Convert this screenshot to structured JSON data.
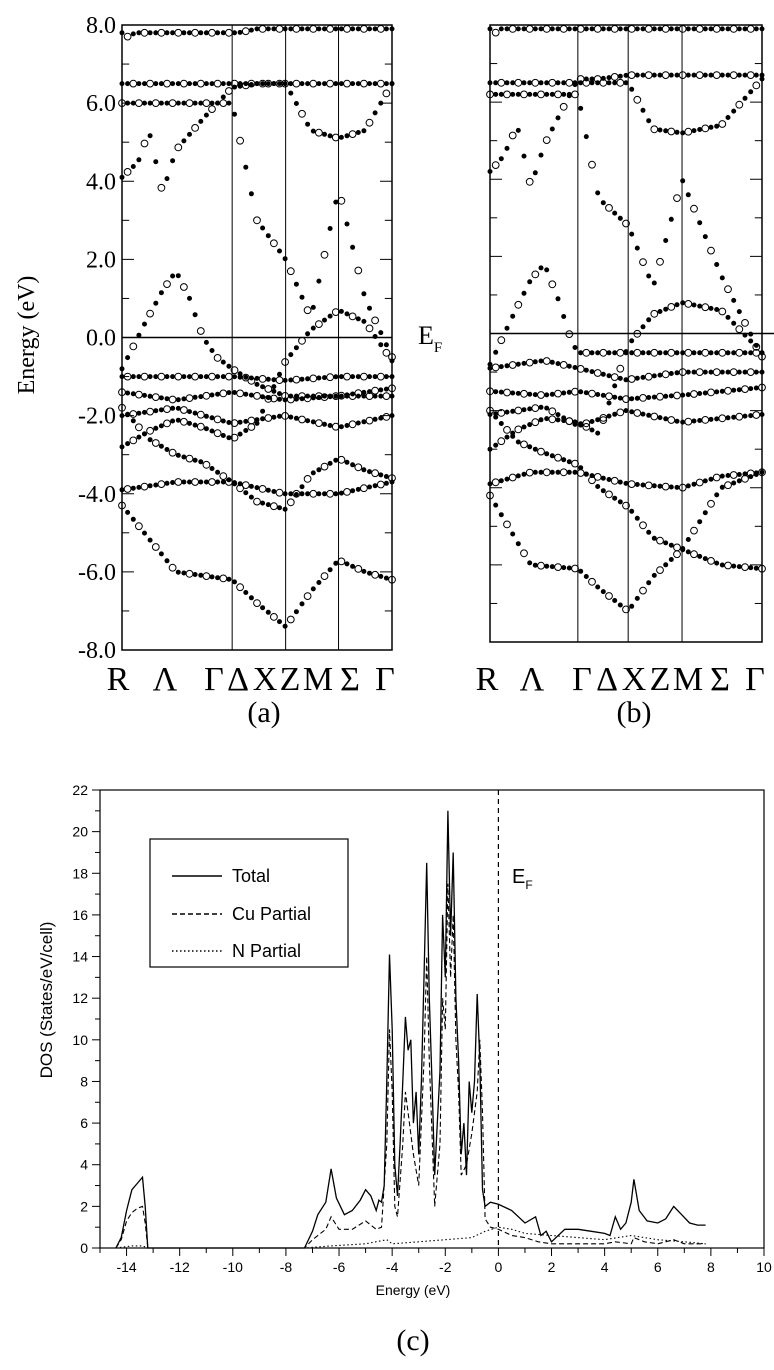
{
  "chart_data": [
    {
      "type": "scatter",
      "panel_label": "(a)",
      "ylabel": "Energy (eV)",
      "ylim": [
        -8,
        8
      ],
      "yticks": [
        "8.0",
        "6.0",
        "4.0",
        "2.0",
        "0.0",
        "-2.0",
        "-4.0",
        "-6.0",
        "-8.0"
      ],
      "k_labels": [
        "R",
        "Λ",
        "Γ",
        "Δ",
        "X",
        "Z",
        "M",
        "Σ",
        "Γ"
      ],
      "k_points": [
        "R",
        "Γ",
        "X",
        "M",
        "Γ"
      ],
      "k_positions": [
        0,
        0.408,
        0.606,
        0.802,
        1.0
      ],
      "series": [
        {
          "x": [
            0,
            0.2,
            0.408,
            0.5,
            0.606,
            0.7,
            0.802,
            0.9,
            1.0
          ],
          "y": [
            -4.3,
            -6.0,
            -6.2,
            -6.8,
            -7.4,
            -6.5,
            -5.7,
            -6.0,
            -6.2
          ]
        },
        {
          "x": [
            0,
            0.08,
            0.15,
            0.2,
            0.25,
            0.3,
            0.35,
            0.408,
            0.5,
            0.606
          ],
          "y": [
            -0.8,
            0.3,
            1.2,
            1.7,
            1.0,
            0.0,
            -0.5,
            -0.8,
            -1.2,
            -1.5
          ]
        },
        {
          "x": [
            0,
            0.2,
            0.408,
            0.6,
            0.802,
            1.0
          ],
          "y": [
            -3.9,
            -3.7,
            -3.7,
            -4.0,
            -4.0,
            -3.7
          ]
        },
        {
          "x": [
            0,
            0.1,
            0.2,
            0.3,
            0.408,
            0.5,
            0.606,
            0.7,
            0.802,
            0.9,
            1.0
          ],
          "y": [
            -1.8,
            -2.6,
            -3.0,
            -3.2,
            -3.7,
            -4.2,
            -4.4,
            -3.5,
            -3.1,
            -3.4,
            -3.6
          ]
        },
        {
          "x": [
            0,
            0.1,
            0.2,
            0.3,
            0.408,
            0.5,
            0.606,
            0.7,
            0.802,
            0.9,
            1.0
          ],
          "y": [
            -2.8,
            -2.4,
            -2.1,
            -2.3,
            -2.6,
            -2.2,
            -0.6,
            0.2,
            0.7,
            0.4,
            -0.6
          ]
        },
        {
          "x": [
            0,
            0.2,
            0.408,
            0.6,
            0.802,
            1.0
          ],
          "y": [
            -1.0,
            -1.0,
            -1.0,
            -1.1,
            -1.0,
            -1.0
          ]
        },
        {
          "x": [
            0,
            0.2,
            0.408,
            0.6,
            0.802,
            1.0
          ],
          "y": [
            -1.4,
            -1.6,
            -1.4,
            -1.6,
            -1.5,
            -1.3
          ]
        },
        {
          "x": [
            0,
            0.2,
            0.408,
            0.6,
            0.802,
            1.0
          ],
          "y": [
            -2.0,
            -1.8,
            -2.2,
            -2.0,
            -2.3,
            -2.0
          ]
        },
        {
          "x": [
            0,
            0.06,
            0.1,
            0.15,
            0.2,
            0.3,
            0.408,
            0.5,
            0.606
          ],
          "y": [
            4.1,
            4.5,
            5.3,
            3.7,
            4.8,
            5.6,
            6.4,
            6.5,
            6.5
          ]
        },
        {
          "x": [
            0.408,
            0.5,
            0.606,
            0.7,
            0.802,
            0.9,
            1.0
          ],
          "y": [
            6.0,
            3.0,
            2.0,
            0.5,
            3.8,
            1.0,
            -0.5
          ]
        },
        {
          "x": [
            0.606,
            0.7,
            0.802,
            0.9,
            1.0
          ],
          "y": [
            6.5,
            5.3,
            5.1,
            5.3,
            6.5
          ]
        },
        {
          "x": [
            0,
            0.02,
            0.05,
            0.408,
            0.43,
            0.5
          ],
          "y": [
            7.8,
            7.7,
            7.8,
            7.8,
            7.8,
            7.9
          ]
        }
      ]
    },
    {
      "type": "scatter",
      "panel_label": "(b)",
      "ylim": [
        -8,
        8
      ],
      "fermi_label": "E",
      "fermi_subscript": "F",
      "k_labels": [
        "R",
        "Λ",
        "Γ",
        "Δ",
        "X",
        "Z",
        "M",
        "Σ",
        "Γ"
      ],
      "k_points": [
        "R",
        "Γ",
        "X",
        "M",
        "Γ"
      ],
      "k_positions": [
        0,
        0.323,
        0.508,
        0.706,
        1.0
      ],
      "series": [
        {
          "x": [
            0,
            0.15,
            0.323,
            0.4,
            0.508,
            0.6,
            0.706,
            0.85,
            1.0
          ],
          "y": [
            -4.2,
            -6.0,
            -6.1,
            -6.6,
            -7.2,
            -6.3,
            -5.6,
            -6.0,
            -6.1
          ]
        },
        {
          "x": [
            0,
            0.08,
            0.15,
            0.2,
            0.25,
            0.3,
            0.323
          ],
          "y": [
            -0.8,
            0.4,
            1.4,
            1.8,
            0.9,
            -0.2,
            -0.5
          ]
        },
        {
          "x": [
            0,
            0.15,
            0.323,
            0.508,
            0.706,
            0.85,
            1.0
          ],
          "y": [
            -3.9,
            -3.6,
            -3.6,
            -3.9,
            -4.0,
            -3.7,
            -3.6
          ]
        },
        {
          "x": [
            0,
            0.1,
            0.2,
            0.323,
            0.4,
            0.508,
            0.6,
            0.706,
            0.85,
            1.0
          ],
          "y": [
            -2.0,
            -2.8,
            -3.1,
            -3.4,
            -4.0,
            -4.5,
            -5.3,
            -5.6,
            -4.0,
            -3.6
          ]
        },
        {
          "x": [
            0,
            0.1,
            0.2,
            0.323,
            0.4,
            0.508,
            0.6,
            0.706,
            0.85,
            1.0
          ],
          "y": [
            -3.0,
            -2.5,
            -2.2,
            -2.3,
            -2.6,
            -0.3,
            0.5,
            0.8,
            0.6,
            -0.5
          ]
        },
        {
          "x": [
            0,
            0.2,
            0.323,
            0.5,
            0.706,
            1.0
          ],
          "y": [
            -0.9,
            -0.7,
            -0.9,
            -1.2,
            -1.0,
            -1.0
          ]
        },
        {
          "x": [
            0,
            0.2,
            0.323,
            0.5,
            0.706,
            1.0
          ],
          "y": [
            -1.5,
            -1.6,
            -1.5,
            -1.7,
            -1.6,
            -1.4
          ]
        },
        {
          "x": [
            0,
            0.2,
            0.323,
            0.5,
            0.706,
            1.0
          ],
          "y": [
            -2.1,
            -1.9,
            -2.4,
            -2.0,
            -2.3,
            -2.1
          ]
        },
        {
          "x": [
            0,
            0.05,
            0.1,
            0.15,
            0.2,
            0.323,
            0.4,
            0.508
          ],
          "y": [
            4.2,
            4.6,
            5.4,
            3.8,
            4.9,
            6.6,
            6.6,
            6.7
          ]
        },
        {
          "x": [
            0.323,
            0.4,
            0.508,
            0.6,
            0.706,
            0.85,
            1.0
          ],
          "y": [
            6.2,
            3.5,
            2.8,
            1.2,
            4.0,
            1.5,
            -0.6
          ]
        },
        {
          "x": [
            0.508,
            0.6,
            0.706,
            0.85,
            1.0
          ],
          "y": [
            6.5,
            5.3,
            5.2,
            5.4,
            6.6
          ]
        },
        {
          "x": [
            0,
            0.02,
            0.04,
            0.323,
            0.36
          ],
          "y": [
            7.9,
            7.8,
            7.9,
            7.9,
            7.9
          ]
        }
      ]
    },
    {
      "type": "line",
      "panel_label": "(c)",
      "xlabel": "Energy (eV)",
      "ylabel": "DOS (States/eV/cell)",
      "xlim": [
        -15,
        10
      ],
      "ylim": [
        0,
        22
      ],
      "xticks": [
        -14,
        -12,
        -10,
        -8,
        -6,
        -4,
        -2,
        0,
        2,
        4,
        6,
        8,
        10
      ],
      "yticks": [
        0,
        2,
        4,
        6,
        8,
        10,
        12,
        14,
        16,
        18,
        20,
        22
      ],
      "fermi_label": "E",
      "fermi_subscript": "F",
      "fermi_energy": 0,
      "legend": [
        "Total",
        "Cu Partial",
        "N Partial"
      ],
      "legend_position": "top-left",
      "series": [
        {
          "name": "Total",
          "style": "solid",
          "x": [
            -14.4,
            -14.2,
            -14.0,
            -13.8,
            -13.6,
            -13.4,
            -13.3,
            -13.2,
            -7.3,
            -7.0,
            -6.8,
            -6.5,
            -6.3,
            -6.1,
            -5.8,
            -5.5,
            -5.2,
            -5.0,
            -4.8,
            -4.6,
            -4.5,
            -4.4,
            -4.3,
            -4.2,
            -4.1,
            -4.0,
            -3.9,
            -3.8,
            -3.7,
            -3.6,
            -3.5,
            -3.4,
            -3.3,
            -3.2,
            -3.1,
            -3.0,
            -2.9,
            -2.8,
            -2.7,
            -2.6,
            -2.5,
            -2.4,
            -2.3,
            -2.2,
            -2.1,
            -2.0,
            -1.9,
            -1.8,
            -1.7,
            -1.6,
            -1.5,
            -1.4,
            -1.3,
            -1.2,
            -1.1,
            -1.0,
            -0.9,
            -0.8,
            -0.7,
            -0.6,
            -0.5,
            -0.3,
            0.0,
            0.5,
            1.0,
            1.4,
            1.6,
            1.8,
            2.0,
            2.5,
            3.0,
            3.5,
            4.0,
            4.2,
            4.4,
            4.6,
            4.8,
            5.0,
            5.1,
            5.3,
            5.6,
            6.0,
            6.3,
            6.6,
            6.9,
            7.2,
            7.5,
            7.8
          ],
          "y": [
            0,
            0.5,
            1.8,
            2.8,
            3.1,
            3.4,
            2.0,
            0,
            0,
            0.8,
            1.6,
            2.2,
            3.8,
            2.4,
            1.6,
            1.8,
            2.3,
            2.8,
            2.5,
            1.8,
            2.3,
            2.2,
            3.0,
            8.0,
            14.1,
            10.5,
            4.0,
            2.5,
            5.0,
            8.0,
            11.1,
            9.5,
            10.0,
            6.0,
            7.5,
            4.5,
            8.0,
            13.0,
            18.5,
            12.0,
            8.0,
            3.5,
            6.0,
            8.5,
            16.0,
            13.0,
            21.0,
            15.0,
            19.0,
            12.0,
            9.0,
            4.5,
            6.0,
            3.5,
            8.0,
            6.5,
            8.0,
            12.2,
            9.0,
            2.8,
            2.0,
            2.2,
            2.1,
            1.8,
            1.2,
            1.5,
            0.6,
            0.8,
            0.3,
            0.9,
            0.9,
            0.8,
            0.7,
            0.6,
            1.5,
            0.9,
            1.2,
            2.2,
            3.3,
            1.8,
            1.3,
            1.2,
            1.4,
            2.0,
            1.6,
            1.2,
            1.1,
            1.1
          ]
        },
        {
          "name": "Cu Partial",
          "style": "dashed",
          "x": [
            -14.4,
            -14.2,
            -14.0,
            -13.8,
            -13.6,
            -13.4,
            -13.3,
            -13.2,
            -7.3,
            -7.0,
            -6.5,
            -6.3,
            -6.0,
            -5.5,
            -5.0,
            -4.6,
            -4.4,
            -4.2,
            -4.1,
            -4.0,
            -3.9,
            -3.8,
            -3.6,
            -3.5,
            -3.4,
            -3.2,
            -3.0,
            -2.8,
            -2.7,
            -2.6,
            -2.5,
            -2.4,
            -2.2,
            -2.1,
            -2.0,
            -1.9,
            -1.8,
            -1.7,
            -1.6,
            -1.5,
            -1.4,
            -1.2,
            -1.0,
            -0.8,
            -0.7,
            -0.6,
            -0.5,
            -0.3,
            0.0,
            0.5,
            1.0,
            1.5,
            2.0,
            3.0,
            4.0,
            4.4,
            5.0,
            5.1,
            5.5,
            6.0,
            6.6,
            7.0,
            7.5,
            7.8
          ],
          "y": [
            0,
            0.4,
            1.3,
            1.7,
            1.9,
            2.0,
            1.2,
            0,
            0,
            0.4,
            0.9,
            1.5,
            0.9,
            0.9,
            1.3,
            0.9,
            1.0,
            5.0,
            10.5,
            7.5,
            2.0,
            1.5,
            5.0,
            7.5,
            6.5,
            4.5,
            3.0,
            9.0,
            14.0,
            9.0,
            5.5,
            2.0,
            5.0,
            12.0,
            10.5,
            17.5,
            13.0,
            16.0,
            10.0,
            7.5,
            3.5,
            4.0,
            5.5,
            7.5,
            10.0,
            6.5,
            1.4,
            1.0,
            0.9,
            0.6,
            0.5,
            0.3,
            0.2,
            0.2,
            0.2,
            0.3,
            0.2,
            0.5,
            0.3,
            0.2,
            0.4,
            0.2,
            0.2,
            0.2
          ]
        },
        {
          "name": "N Partial",
          "style": "dotted",
          "x": [
            -14.4,
            -13.8,
            -13.4,
            -13.2,
            -7.3,
            -6.3,
            -5.0,
            -4.2,
            -4.0,
            -3.0,
            -2.0,
            -1.0,
            -0.5,
            0.0,
            0.5,
            1.0,
            2.0,
            3.0,
            4.0,
            5.0,
            6.0,
            7.0,
            7.8
          ],
          "y": [
            0,
            0.1,
            0.1,
            0,
            0,
            0.1,
            0.2,
            0.4,
            0.2,
            0.3,
            0.4,
            0.5,
            0.8,
            1.0,
            0.9,
            0.7,
            0.6,
            0.5,
            0.4,
            0.6,
            0.4,
            0.3,
            0.2
          ]
        }
      ]
    }
  ]
}
